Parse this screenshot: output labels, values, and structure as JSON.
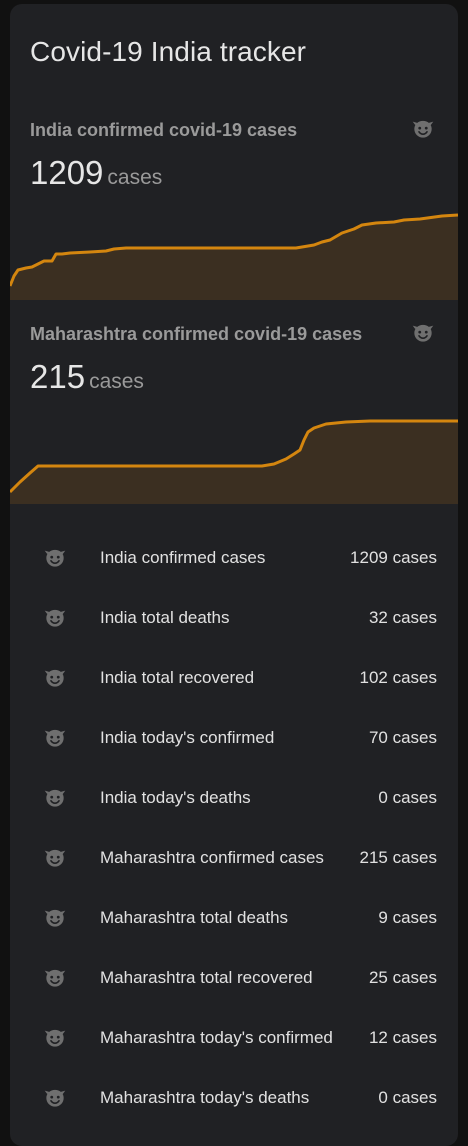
{
  "card": {
    "title": "Covid-19 India tracker"
  },
  "sensors": [
    {
      "name": "India confirmed covid-19 cases",
      "value": "1209",
      "unit": "cases",
      "icon": "emoticon-devil-icon"
    },
    {
      "name": "Maharashtra confirmed covid-19 cases",
      "value": "215",
      "unit": "cases",
      "icon": "emoticon-devil-icon"
    }
  ],
  "entities": [
    {
      "label": "India confirmed cases",
      "value": "1209 cases",
      "icon": "emoticon-devil-icon"
    },
    {
      "label": "India total deaths",
      "value": "32 cases",
      "icon": "emoticon-devil-icon"
    },
    {
      "label": "India total recovered",
      "value": "102 cases",
      "icon": "emoticon-devil-icon"
    },
    {
      "label": "India today's confirmed",
      "value": "70 cases",
      "icon": "emoticon-devil-icon"
    },
    {
      "label": "India today's deaths",
      "value": "0 cases",
      "icon": "emoticon-devil-icon"
    },
    {
      "label": "Maharashtra confirmed cases",
      "value": "215 cases",
      "icon": "emoticon-devil-icon"
    },
    {
      "label": "Maharashtra total deaths",
      "value": "9 cases",
      "icon": "emoticon-devil-icon"
    },
    {
      "label": "Maharashtra total recovered",
      "value": "25 cases",
      "icon": "emoticon-devil-icon"
    },
    {
      "label": "Maharashtra today's confirmed",
      "value": "12 cases",
      "icon": "emoticon-devil-icon"
    },
    {
      "label": "Maharashtra today's deaths",
      "value": "0 cases",
      "icon": "emoticon-devil-icon"
    }
  ],
  "colors": {
    "card_background": "#202124",
    "page_background": "#111111",
    "graph_line": "#d4860f",
    "graph_fill": "#3b2f21",
    "icon": "#6f6f6f",
    "primary_text": "#e1e1e1",
    "secondary_text": "#9a9a9a"
  }
}
